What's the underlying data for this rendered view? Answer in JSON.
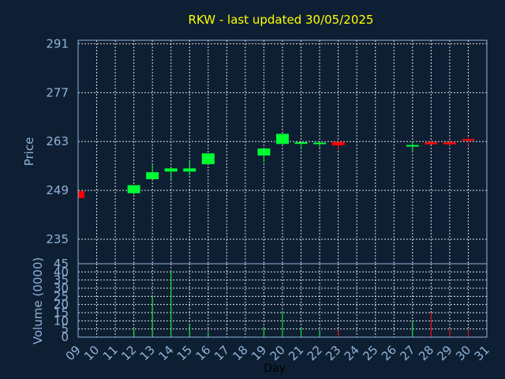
{
  "chart_data": {
    "type": "candlestick",
    "title": "RKW - last updated 30/05/2025",
    "xlabel": "Day",
    "x_ticks": [
      "09",
      "10",
      "11",
      "12",
      "13",
      "14",
      "15",
      "16",
      "17",
      "18",
      "19",
      "20",
      "21",
      "22",
      "23",
      "24",
      "25",
      "26",
      "27",
      "28",
      "29",
      "30",
      "31"
    ],
    "price": {
      "ylabel": "Price",
      "ylim": [
        228,
        292
      ],
      "yticks": [
        235,
        249,
        263,
        277,
        291
      ],
      "candles": [
        {
          "day": 9,
          "open": 248.8,
          "close": 246.8,
          "high": 248.8,
          "low": 246.8
        },
        {
          "day": 12,
          "open": 248.2,
          "close": 250.5,
          "high": 250.5,
          "low": 247.8
        },
        {
          "day": 13,
          "open": 252.2,
          "close": 254.2,
          "high": 256.2,
          "low": 252.2
        },
        {
          "day": 14,
          "open": 254.4,
          "close": 255.3,
          "high": 255.8,
          "low": 252.2
        },
        {
          "day": 15,
          "open": 254.4,
          "close": 255.3,
          "high": 257.8,
          "low": 253.3
        },
        {
          "day": 16,
          "open": 256.5,
          "close": 259.6,
          "high": 259.6,
          "low": 256.5
        },
        {
          "day": 19,
          "open": 259.0,
          "close": 261.0,
          "high": 261.0,
          "low": 257.0
        },
        {
          "day": 20,
          "open": 262.3,
          "close": 265.2,
          "high": 265.2,
          "low": 262.3
        },
        {
          "day": 21,
          "open": 262.5,
          "close": 262.8,
          "high": 262.9,
          "low": 260.7
        },
        {
          "day": 22,
          "open": 262.6,
          "close": 262.7,
          "high": 262.9,
          "low": 261.3
        },
        {
          "day": 23,
          "open": 262.9,
          "close": 261.9,
          "high": 262.9,
          "low": 260.6
        },
        {
          "day": 27,
          "open": 261.8,
          "close": 262.0,
          "high": 263.0,
          "low": 260.2
        },
        {
          "day": 28,
          "open": 262.8,
          "close": 262.2,
          "high": 263.3,
          "low": 262.2
        },
        {
          "day": 29,
          "open": 262.8,
          "close": 262.2,
          "high": 263.5,
          "low": 261.9
        },
        {
          "day": 30,
          "open": 263.7,
          "close": 263.4,
          "high": 264.2,
          "low": 261.9
        }
      ]
    },
    "volume": {
      "ylabel": "Volume (0000)",
      "ylim": [
        0,
        45
      ],
      "yticks": [
        0,
        5,
        10,
        15,
        20,
        25,
        30,
        35,
        40,
        45
      ],
      "bars": [
        {
          "day": 12,
          "value": 5,
          "direction": "up"
        },
        {
          "day": 13,
          "value": 25,
          "direction": "up"
        },
        {
          "day": 14,
          "value": 41,
          "direction": "up"
        },
        {
          "day": 15,
          "value": 8,
          "direction": "up"
        },
        {
          "day": 16,
          "value": 3,
          "direction": "up"
        },
        {
          "day": 19,
          "value": 6,
          "direction": "up"
        },
        {
          "day": 20,
          "value": 16,
          "direction": "up"
        },
        {
          "day": 21,
          "value": 6,
          "direction": "up"
        },
        {
          "day": 22,
          "value": 4,
          "direction": "up"
        },
        {
          "day": 23,
          "value": 4,
          "direction": "down"
        },
        {
          "day": 27,
          "value": 10,
          "direction": "up"
        },
        {
          "day": 28,
          "value": 15,
          "direction": "down"
        },
        {
          "day": 29,
          "value": 5,
          "direction": "down"
        },
        {
          "day": 30,
          "value": 4,
          "direction": "down"
        }
      ]
    },
    "grid": true,
    "colors": {
      "background": "#0f1f33",
      "up": "#00ff33",
      "down": "#ff0000",
      "axis_text": "#8fb3d9",
      "title": "#ffff00"
    }
  }
}
